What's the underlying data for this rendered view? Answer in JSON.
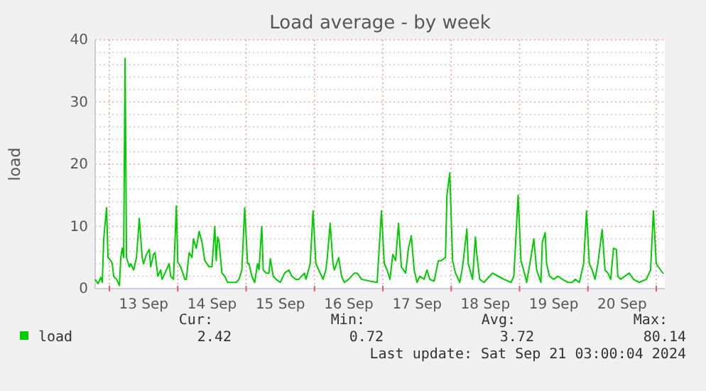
{
  "chart_data": {
    "type": "line",
    "title": "Load average - by week",
    "ylabel": "load",
    "xlim": [
      "2024-09-12T19:00",
      "2024-09-21T03:00"
    ],
    "xticks": [
      {
        "value": "2024-09-13T00:00",
        "label": null
      },
      {
        "value": "2024-09-13T12:00",
        "label": "13 Sep"
      },
      {
        "value": "2024-09-14T00:00",
        "label": null
      },
      {
        "value": "2024-09-14T12:00",
        "label": "14 Sep"
      },
      {
        "value": "2024-09-15T00:00",
        "label": null
      },
      {
        "value": "2024-09-15T12:00",
        "label": "15 Sep"
      },
      {
        "value": "2024-09-16T00:00",
        "label": null
      },
      {
        "value": "2024-09-16T12:00",
        "label": "16 Sep"
      },
      {
        "value": "2024-09-17T00:00",
        "label": null
      },
      {
        "value": "2024-09-17T12:00",
        "label": "17 Sep"
      },
      {
        "value": "2024-09-18T00:00",
        "label": null
      },
      {
        "value": "2024-09-18T12:00",
        "label": "18 Sep"
      },
      {
        "value": "2024-09-19T00:00",
        "label": null
      },
      {
        "value": "2024-09-19T12:00",
        "label": "19 Sep"
      },
      {
        "value": "2024-09-20T00:00",
        "label": null
      },
      {
        "value": "2024-09-20T12:00",
        "label": "20 Sep"
      },
      {
        "value": "2024-09-21T00:00",
        "label": null
      }
    ],
    "ylim": [
      0,
      40
    ],
    "yticks": [
      0,
      {
        "value": 2,
        "label": null
      },
      {
        "value": 4,
        "label": null
      },
      {
        "value": 6,
        "label": null
      },
      {
        "value": 8,
        "label": null
      },
      10,
      {
        "value": 12,
        "label": null
      },
      {
        "value": 14,
        "label": null
      },
      {
        "value": 16,
        "label": null
      },
      {
        "value": 18,
        "label": null
      },
      20,
      {
        "value": 22,
        "label": null
      },
      {
        "value": 24,
        "label": null
      },
      {
        "value": 26,
        "label": null
      },
      {
        "value": 28,
        "label": null
      },
      30,
      {
        "value": 32,
        "label": null
      },
      {
        "value": 34,
        "label": null
      },
      {
        "value": 36,
        "label": null
      },
      {
        "value": 38,
        "label": null
      },
      40
    ],
    "grid": true,
    "legend": "bottom",
    "marker": "none",
    "line_style": "solid",
    "x": [
      "2024-09-12T19:00",
      "2024-09-12T20:00",
      "2024-09-12T21:00",
      "2024-09-12T21:30",
      "2024-09-12T22:00",
      "2024-09-12T23:00",
      "2024-09-12T23:30",
      "2024-09-13T00:30",
      "2024-09-13T01:00",
      "2024-09-13T01:30",
      "2024-09-13T02:30",
      "2024-09-13T03:30",
      "2024-09-13T04:00",
      "2024-09-13T04:30",
      "2024-09-13T05:00",
      "2024-09-13T05:30",
      "2024-09-13T06:00",
      "2024-09-13T07:00",
      "2024-09-13T07:30",
      "2024-09-13T08:30",
      "2024-09-13T09:30",
      "2024-09-13T10:30",
      "2024-09-13T11:30",
      "2024-09-13T12:00",
      "2024-09-13T13:00",
      "2024-09-13T14:00",
      "2024-09-13T14:30",
      "2024-09-13T15:30",
      "2024-09-13T16:00",
      "2024-09-13T17:00",
      "2024-09-13T18:00",
      "2024-09-13T18:30",
      "2024-09-13T20:00",
      "2024-09-13T21:00",
      "2024-09-13T21:30",
      "2024-09-13T22:30",
      "2024-09-13T23:30",
      "2024-09-14T00:00",
      "2024-09-14T01:00",
      "2024-09-14T02:30",
      "2024-09-14T03:00",
      "2024-09-14T04:00",
      "2024-09-14T05:00",
      "2024-09-14T05:30",
      "2024-09-14T06:30",
      "2024-09-14T07:30",
      "2024-09-14T08:30",
      "2024-09-14T09:30",
      "2024-09-14T11:00",
      "2024-09-14T12:00",
      "2024-09-14T13:00",
      "2024-09-14T13:30",
      "2024-09-14T14:00",
      "2024-09-14T14:30",
      "2024-09-14T15:30",
      "2024-09-14T16:30",
      "2024-09-14T17:30",
      "2024-09-14T19:30",
      "2024-09-14T20:30",
      "2024-09-14T21:30",
      "2024-09-14T22:30",
      "2024-09-14T23:30",
      "2024-09-15T00:30",
      "2024-09-15T01:00",
      "2024-09-15T02:00",
      "2024-09-15T03:00",
      "2024-09-15T04:00",
      "2024-09-15T04:30",
      "2024-09-15T05:30",
      "2024-09-15T06:00",
      "2024-09-15T07:00",
      "2024-09-15T08:00",
      "2024-09-15T08:30",
      "2024-09-15T09:30",
      "2024-09-15T10:30",
      "2024-09-15T12:00",
      "2024-09-15T13:30",
      "2024-09-15T15:00",
      "2024-09-15T16:00",
      "2024-09-15T17:30",
      "2024-09-15T18:30",
      "2024-09-15T20:30",
      "2024-09-15T21:00",
      "2024-09-15T22:30",
      "2024-09-15T23:30",
      "2024-09-16T00:30",
      "2024-09-16T01:30",
      "2024-09-16T03:00",
      "2024-09-16T04:00",
      "2024-09-16T04:30",
      "2024-09-16T05:30",
      "2024-09-16T06:30",
      "2024-09-16T07:00",
      "2024-09-16T08:30",
      "2024-09-16T09:30",
      "2024-09-16T10:30",
      "2024-09-16T12:00",
      "2024-09-16T14:00",
      "2024-09-16T15:00",
      "2024-09-16T16:30",
      "2024-09-16T19:30",
      "2024-09-16T22:00",
      "2024-09-16T23:30",
      "2024-09-17T00:30",
      "2024-09-17T01:30",
      "2024-09-17T02:30",
      "2024-09-17T03:30",
      "2024-09-17T04:30",
      "2024-09-17T05:30",
      "2024-09-17T06:30",
      "2024-09-17T08:00",
      "2024-09-17T09:00",
      "2024-09-17T10:00",
      "2024-09-17T11:00",
      "2024-09-17T12:00",
      "2024-09-17T13:00",
      "2024-09-17T14:30",
      "2024-09-17T15:30",
      "2024-09-17T16:30",
      "2024-09-17T18:00",
      "2024-09-17T19:30",
      "2024-09-17T20:30",
      "2024-09-17T22:00",
      "2024-09-17T22:30",
      "2024-09-17T23:30",
      "2024-09-18T00:30",
      "2024-09-18T01:30",
      "2024-09-18T03:00",
      "2024-09-18T04:00",
      "2024-09-18T05:30",
      "2024-09-18T06:00",
      "2024-09-18T07:30",
      "2024-09-18T08:30",
      "2024-09-18T09:00",
      "2024-09-18T10:00",
      "2024-09-18T11:30",
      "2024-09-18T13:30",
      "2024-09-18T14:30",
      "2024-09-18T16:30",
      "2024-09-18T18:30",
      "2024-09-18T21:00",
      "2024-09-18T22:00",
      "2024-09-18T23:30",
      "2024-09-19T00:30",
      "2024-09-19T02:00",
      "2024-09-19T02:30",
      "2024-09-19T04:00",
      "2024-09-19T05:00",
      "2024-09-19T06:00",
      "2024-09-19T07:30",
      "2024-09-19T08:00",
      "2024-09-19T09:00",
      "2024-09-19T09:30",
      "2024-09-19T10:30",
      "2024-09-19T12:00",
      "2024-09-19T13:30",
      "2024-09-19T15:00",
      "2024-09-19T17:00",
      "2024-09-19T18:30",
      "2024-09-19T19:30",
      "2024-09-19T21:00",
      "2024-09-19T22:30",
      "2024-09-19T23:30",
      "2024-09-20T00:30",
      "2024-09-20T01:30",
      "2024-09-20T02:30",
      "2024-09-20T03:30",
      "2024-09-20T05:00",
      "2024-09-20T06:00",
      "2024-09-20T07:00",
      "2024-09-20T08:00",
      "2024-09-20T09:00",
      "2024-09-20T10:00",
      "2024-09-20T10:30",
      "2024-09-20T11:30",
      "2024-09-20T13:00",
      "2024-09-20T14:30",
      "2024-09-20T16:00",
      "2024-09-20T18:00",
      "2024-09-20T20:30",
      "2024-09-20T22:00",
      "2024-09-20T23:00",
      "2024-09-21T00:00",
      "2024-09-21T01:30",
      "2024-09-21T02:30"
    ],
    "series": [
      {
        "name": "load",
        "color": "#00cc00",
        "values": [
          1.5,
          0.8,
          1.8,
          1,
          8,
          13,
          5,
          4.5,
          4,
          2,
          1.5,
          0.5,
          5,
          6.5,
          5,
          37,
          5,
          3.5,
          4,
          3,
          5,
          11.3,
          5,
          4,
          5.5,
          6.3,
          3.5,
          5.5,
          5.8,
          2,
          3,
          1.5,
          3,
          4,
          2,
          1.5,
          13.3,
          4.3,
          3.5,
          1.5,
          1.5,
          5.8,
          5,
          8,
          6.5,
          9.2,
          7.5,
          4.5,
          3.5,
          3.5,
          10,
          4.5,
          8.3,
          7.5,
          2.5,
          2,
          1,
          1,
          1,
          1.5,
          3,
          13,
          4,
          4,
          2,
          1,
          4,
          3,
          10,
          3,
          2.5,
          2.5,
          4.8,
          2,
          1.5,
          1,
          2.5,
          3,
          2,
          1.5,
          1.5,
          2.5,
          1.5,
          4,
          12.5,
          4,
          3,
          1.5,
          3,
          5,
          10.5,
          4,
          3,
          5,
          2,
          1,
          1.5,
          2.5,
          2.5,
          1.5,
          1.2,
          1,
          12.5,
          4,
          3,
          1.5,
          5.5,
          4.5,
          10.5,
          3.5,
          2.5,
          6.5,
          8.5,
          3,
          1,
          2,
          1.5,
          3,
          1.5,
          1.2,
          4.5,
          4.5,
          5,
          15,
          18.6,
          4.5,
          2.5,
          1,
          3.5,
          9.6,
          4,
          1.5,
          8.3,
          5.5,
          1.5,
          1,
          2,
          2.5,
          2,
          1.5,
          1,
          2,
          15,
          4.5,
          2,
          1,
          5,
          8,
          3,
          1,
          7.5,
          9,
          4,
          2,
          1.5,
          2,
          1.5,
          1,
          1,
          1.5,
          1,
          4,
          12.5,
          4,
          3,
          1.5,
          4,
          9.5,
          3,
          2.5,
          1.5,
          6.5,
          6.3,
          2,
          1.5,
          2,
          2.5,
          1.5,
          1,
          1.5,
          3,
          12.5,
          4,
          3,
          2.4
        ]
      }
    ],
    "annotations": [
      "Cur:",
      "Min:",
      "Avg:",
      "Max:",
      "2.42",
      "0.72",
      "3.72",
      "80.14",
      "Last update: Sat Sep 21 03:00:04 2024"
    ]
  }
}
